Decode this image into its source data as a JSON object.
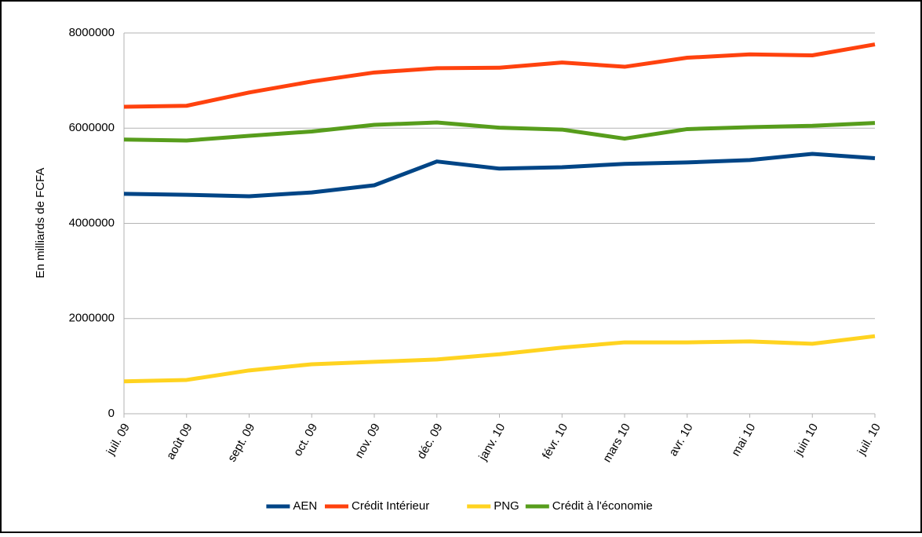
{
  "chart_data": {
    "type": "line",
    "y_label": "En milliards de FCFA",
    "categories": [
      "juil. 09",
      "août 09",
      "sept. 09",
      "oct. 09",
      "nov. 09",
      "déc. 09",
      "janv. 10",
      "févr. 10",
      "mars 10",
      "avr. 10",
      "mai 10",
      "juin 10",
      "juil. 10"
    ],
    "series": [
      {
        "name": "AEN",
        "color": "#004586",
        "values": [
          4620000,
          4600000,
          4570000,
          4650000,
          4800000,
          5300000,
          5150000,
          5180000,
          5250000,
          5280000,
          5330000,
          5460000,
          5370000
        ]
      },
      {
        "name": "Crédit Intérieur",
        "color": "#ff420e",
        "values": [
          6450000,
          6470000,
          6750000,
          6980000,
          7170000,
          7260000,
          7270000,
          7380000,
          7290000,
          7480000,
          7550000,
          7530000,
          7760000
        ]
      },
      {
        "name": "PNG",
        "color": "#ffd320",
        "values": [
          680000,
          710000,
          910000,
          1040000,
          1090000,
          1140000,
          1250000,
          1390000,
          1500000,
          1500000,
          1520000,
          1470000,
          1630000
        ]
      },
      {
        "name": "Crédit à l'économie",
        "color": "#579d1c",
        "values": [
          5760000,
          5740000,
          5840000,
          5930000,
          6070000,
          6120000,
          6010000,
          5970000,
          5780000,
          5980000,
          6020000,
          6050000,
          6110000
        ]
      }
    ],
    "ylim": [
      0,
      8000000
    ],
    "yticks": [
      0,
      2000000,
      4000000,
      6000000,
      8000000
    ],
    "grid": true,
    "legend": "bottom"
  }
}
